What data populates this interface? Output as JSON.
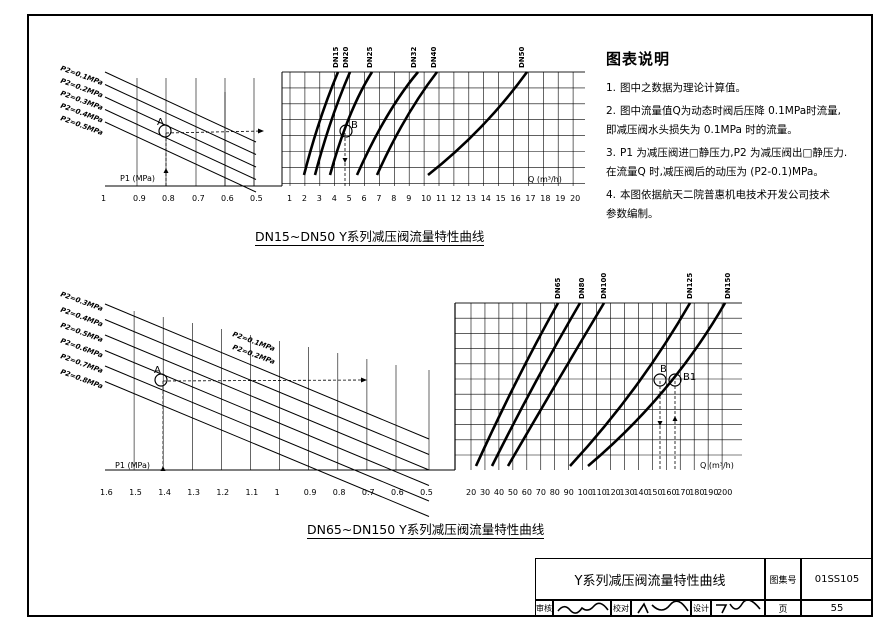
{
  "upper_chart": {
    "p2_labels": [
      "P2=0.1MPa",
      "P2=0.2MPa",
      "P2=0.3MPa",
      "P2=0.4MPa",
      "P2=0.5MPa"
    ],
    "p1_axis_label": "P1 (MPa)",
    "p1_ticks": [
      "1",
      "0.9",
      "0.8",
      "0.7",
      "0.6",
      "0.5"
    ],
    "q_axis_label": "Q (m³/h)",
    "q_ticks": [
      "1",
      "2",
      "3",
      "4",
      "5",
      "6",
      "7",
      "8",
      "9",
      "10",
      "11",
      "12",
      "13",
      "14",
      "15",
      "16",
      "17",
      "18",
      "19",
      "20"
    ],
    "dn_labels": [
      "DN15",
      "DN20",
      "DN25",
      "DN32",
      "DN40",
      "DN50"
    ],
    "point_a": "A",
    "point_b": "B",
    "caption": "DN15~DN50  Y系列减压阀流量特性曲线"
  },
  "lower_chart": {
    "p2_labels": [
      "P2=0.3MPa",
      "P2=0.4MPa",
      "P2=0.5MPa",
      "P2=0.6MPa",
      "P2=0.7MPa",
      "P2=0.8MPa"
    ],
    "p2_inner_labels": [
      "P2=0.1MPa",
      "P2=0.2MPa"
    ],
    "p1_axis_label": "P1 (MPa)",
    "p1_ticks": [
      "1.6",
      "1.5",
      "1.4",
      "1.3",
      "1.2",
      "1.1",
      "1",
      "0.9",
      "0.8",
      "0.7",
      "0.6",
      "0.5"
    ],
    "q_axis_label": "Q (m³/h)",
    "q_ticks": [
      "20",
      "30",
      "40",
      "50",
      "60",
      "70",
      "80",
      "90",
      "100",
      "110",
      "120",
      "130",
      "140",
      "150",
      "160",
      "170",
      "180",
      "190",
      "200"
    ],
    "dn_labels": [
      "DN65",
      "DN80",
      "DN100",
      "DN125",
      "DN150"
    ],
    "point_a": "A",
    "point_b": "B",
    "point_b1": "B1",
    "caption": "DN65~DN150   Y系列减压阀流量特性曲线"
  },
  "notes": {
    "title": "图表说明",
    "items": [
      {
        "num": "1.",
        "text": "图中之数据为理论计算值。"
      },
      {
        "num": "2.",
        "text": "图中流量值Q为动态时阀后压降 0.1MPa时流量,\n即减压阀水头损失为 0.1MPa 时的流量。"
      },
      {
        "num": "3.",
        "text": "P1 为减压阀进□静压力,P2 为减压阀出□静压力.\n在流量Q 时,减压阀后的动压为 (P2-0.1)MPa。"
      },
      {
        "num": "4.",
        "text": "本图依据航天二院普惠机电技术开发公司技术\n参数编制。"
      }
    ]
  },
  "title_block": {
    "title": "Y系列减压阀流量特性曲线",
    "atlas_label": "图集号",
    "atlas_value": "01SS105",
    "review_label": "审核",
    "check_label": "校对",
    "design_label": "设计",
    "page_label": "页",
    "page_value": "55"
  }
}
